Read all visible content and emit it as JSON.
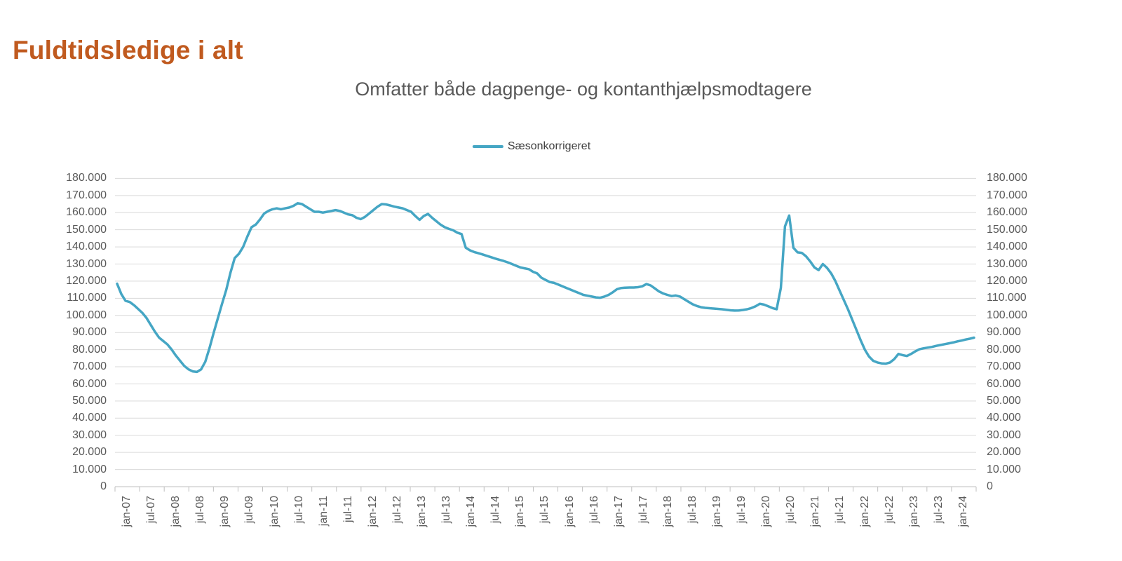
{
  "header": {
    "title": "Fuldtidsledige i alt"
  },
  "chart": {
    "subtitle": "Omfatter både dagpenge- og kontanthjælpsmodtagere",
    "legend_label": "Sæsonkorrigeret",
    "colors": {
      "line": "#45A6C4",
      "title": "#C05A1F",
      "subtitle": "#595959",
      "axis_text": "#595959",
      "gridline": "#D9D9D9",
      "axis_line": "#BFBFBF",
      "legend_text": "#404040"
    }
  },
  "chart_data": {
    "type": "line",
    "title": "Omfatter både dagpenge- og kontanthjælpsmodtagere",
    "legend": [
      "Sæsonkorrigeret"
    ],
    "legend_position": "top-center",
    "grid": "horizontal",
    "ylim": [
      0,
      180000
    ],
    "y_tick_step": 10000,
    "y_tick_labels": [
      "0",
      "10.000",
      "20.000",
      "30.000",
      "40.000",
      "50.000",
      "60.000",
      "70.000",
      "80.000",
      "90.000",
      "100.000",
      "110.000",
      "120.000",
      "130.000",
      "140.000",
      "150.000",
      "160.000",
      "170.000",
      "180.000"
    ],
    "y_axis_left": true,
    "y_axis_right": true,
    "x_tick_labels": [
      "jan-07",
      "jul-07",
      "jan-08",
      "jul-08",
      "jan-09",
      "jul-09",
      "jan-10",
      "jul-10",
      "jan-11",
      "jul-11",
      "jan-12",
      "jul-12",
      "jan-13",
      "jul-13",
      "jan-14",
      "jul-14",
      "jan-15",
      "jul-15",
      "jan-16",
      "jul-16",
      "jan-17",
      "jul-17",
      "jan-18",
      "jul-18",
      "jan-19",
      "jul-19",
      "jan-20",
      "jul-20",
      "jan-21",
      "jul-21",
      "jan-22",
      "jul-22",
      "jan-23",
      "jul-23",
      "jan-24"
    ],
    "series": [
      {
        "name": "Sæsonkorrigeret",
        "frequency": "monthly",
        "x_start": "jan-07",
        "x_end": "jan-24",
        "values": [
          118500,
          112500,
          108500,
          107800,
          106000,
          103800,
          101500,
          98500,
          94500,
          90500,
          87000,
          85000,
          83000,
          80000,
          76500,
          73500,
          70500,
          68500,
          67300,
          67000,
          68500,
          73000,
          81000,
          90000,
          98500,
          107000,
          115000,
          125000,
          133500,
          136000,
          140000,
          146000,
          151500,
          153000,
          156000,
          159500,
          161000,
          162000,
          162500,
          162000,
          162500,
          163000,
          164000,
          165500,
          165000,
          163500,
          162000,
          160500,
          160500,
          160000,
          160500,
          161000,
          161500,
          161000,
          160000,
          159000,
          158500,
          157000,
          156200,
          157500,
          159500,
          161500,
          163500,
          165000,
          164800,
          164200,
          163500,
          163000,
          162500,
          161500,
          160500,
          158000,
          155800,
          158000,
          159300,
          157000,
          155000,
          153000,
          151500,
          150500,
          149700,
          148300,
          147500,
          139500,
          138000,
          137000,
          136300,
          135600,
          134800,
          134000,
          133200,
          132500,
          131800,
          131000,
          130000,
          129000,
          128000,
          127500,
          127000,
          125500,
          124500,
          122000,
          120700,
          119500,
          119000,
          118000,
          117000,
          116000,
          115000,
          114000,
          113000,
          112000,
          111500,
          111000,
          110500,
          110300,
          111000,
          112000,
          113500,
          115300,
          116000,
          116200,
          116300,
          116300,
          116500,
          117000,
          118300,
          117500,
          115800,
          114000,
          112800,
          112000,
          111300,
          111600,
          111000,
          109500,
          108000,
          106500,
          105500,
          104800,
          104400,
          104200,
          104000,
          103800,
          103600,
          103300,
          103000,
          102800,
          102900,
          103200,
          103600,
          104300,
          105300,
          106800,
          106300,
          105300,
          104300,
          103600,
          116000,
          152000,
          158300,
          139500,
          136800,
          136500,
          134500,
          131500,
          128000,
          126500,
          130000,
          127800,
          124500,
          120000,
          114500,
          109000,
          103500,
          97500,
          91500,
          85500,
          80000,
          76000,
          73500,
          72500,
          72000,
          71800,
          72500,
          74500,
          77500,
          76800,
          76300,
          77500,
          79000,
          80200,
          80800,
          81200,
          81600,
          82200,
          82700,
          83200,
          83700,
          84200,
          84800,
          85300,
          85900,
          86400,
          87000
        ]
      }
    ]
  }
}
